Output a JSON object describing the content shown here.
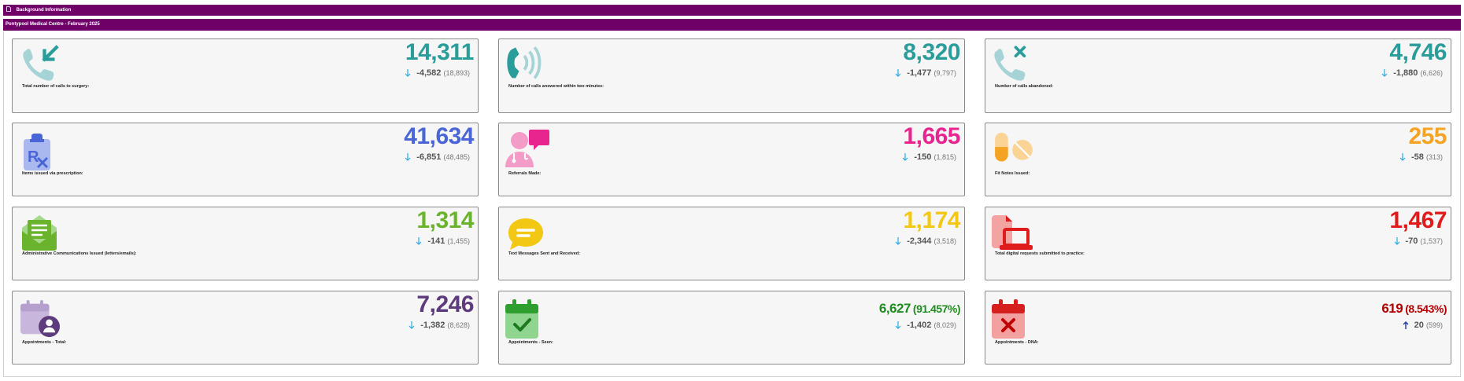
{
  "headers": {
    "background": "Background Information",
    "subtitle": "Pontypool Medical Centre - February 2025"
  },
  "cards": [
    {
      "label": "Total number of calls to surgery:",
      "value": "14,311",
      "change": "-4,582",
      "previous": "(18,893)",
      "color": "#2a9d9a",
      "icon": "phone-incoming-icon",
      "trend": "down"
    },
    {
      "label": "Number of calls answered within two minutes:",
      "value": "8,320",
      "change": "-1,477",
      "previous": "(9,797)",
      "color": "#2a9d9a",
      "icon": "phone-ringing-icon",
      "trend": "down"
    },
    {
      "label": "Number of calls abandoned:",
      "value": "4,746",
      "change": "-1,880",
      "previous": "(6,626)",
      "color": "#2a9d9a",
      "icon": "phone-missed-icon",
      "trend": "down"
    },
    {
      "label": "Items issued via prescription:",
      "value": "41,634",
      "change": "-6,851",
      "previous": "(48,485)",
      "color": "#4a66d6",
      "icon": "prescription-icon",
      "trend": "down"
    },
    {
      "label": "Referrals Made:",
      "value": "1,665",
      "change": "-150",
      "previous": "(1,815)",
      "color": "#e8258f",
      "icon": "doctor-chat-icon",
      "trend": "down"
    },
    {
      "label": "Fit Notes Issued:",
      "value": "255",
      "change": "-58",
      "previous": "(313)",
      "color": "#f5a323",
      "icon": "pills-icon",
      "trend": "down"
    },
    {
      "label": "Administrative Communications Issued (letters/emails):",
      "value": "1,314",
      "change": "-141",
      "previous": "(1,455)",
      "color": "#6ab42d",
      "icon": "envelope-open-icon",
      "trend": "down"
    },
    {
      "label": "Text Messages Sent and Received:",
      "value": "1,174",
      "change": "-2,344",
      "previous": "(3,518)",
      "color": "#f2c814",
      "icon": "message-icon",
      "trend": "down"
    },
    {
      "label": "Total digital requests submitted to practice:",
      "value": "1,467",
      "change": "-70",
      "previous": "(1,537)",
      "color": "#e01b1b",
      "icon": "laptop-file-icon",
      "trend": "down"
    },
    {
      "label": "Appointments - Total:",
      "value": "7,246",
      "pct": "",
      "change": "-1,382",
      "previous": "(8,628)",
      "color": "#5e3b7d",
      "icon": "calendar-user-icon",
      "trend": "down"
    },
    {
      "label": "Appointments - Seen:",
      "value": "6,627",
      "pct": "(91.457%)",
      "change": "-1,402",
      "previous": "(8,029)",
      "color": "#1f8c1f",
      "icon": "calendar-check-icon",
      "trend": "down"
    },
    {
      "label": "Appointments - DNA:",
      "value": "619",
      "pct": "(8.543%)",
      "change": "20",
      "previous": "(599)",
      "color": "#b30000",
      "icon": "calendar-x-icon",
      "trend": "up"
    }
  ],
  "colors": {
    "header_bar": "#6e0068",
    "arrow_down": "#29abe2",
    "arrow_up": "#1f3aa0"
  }
}
